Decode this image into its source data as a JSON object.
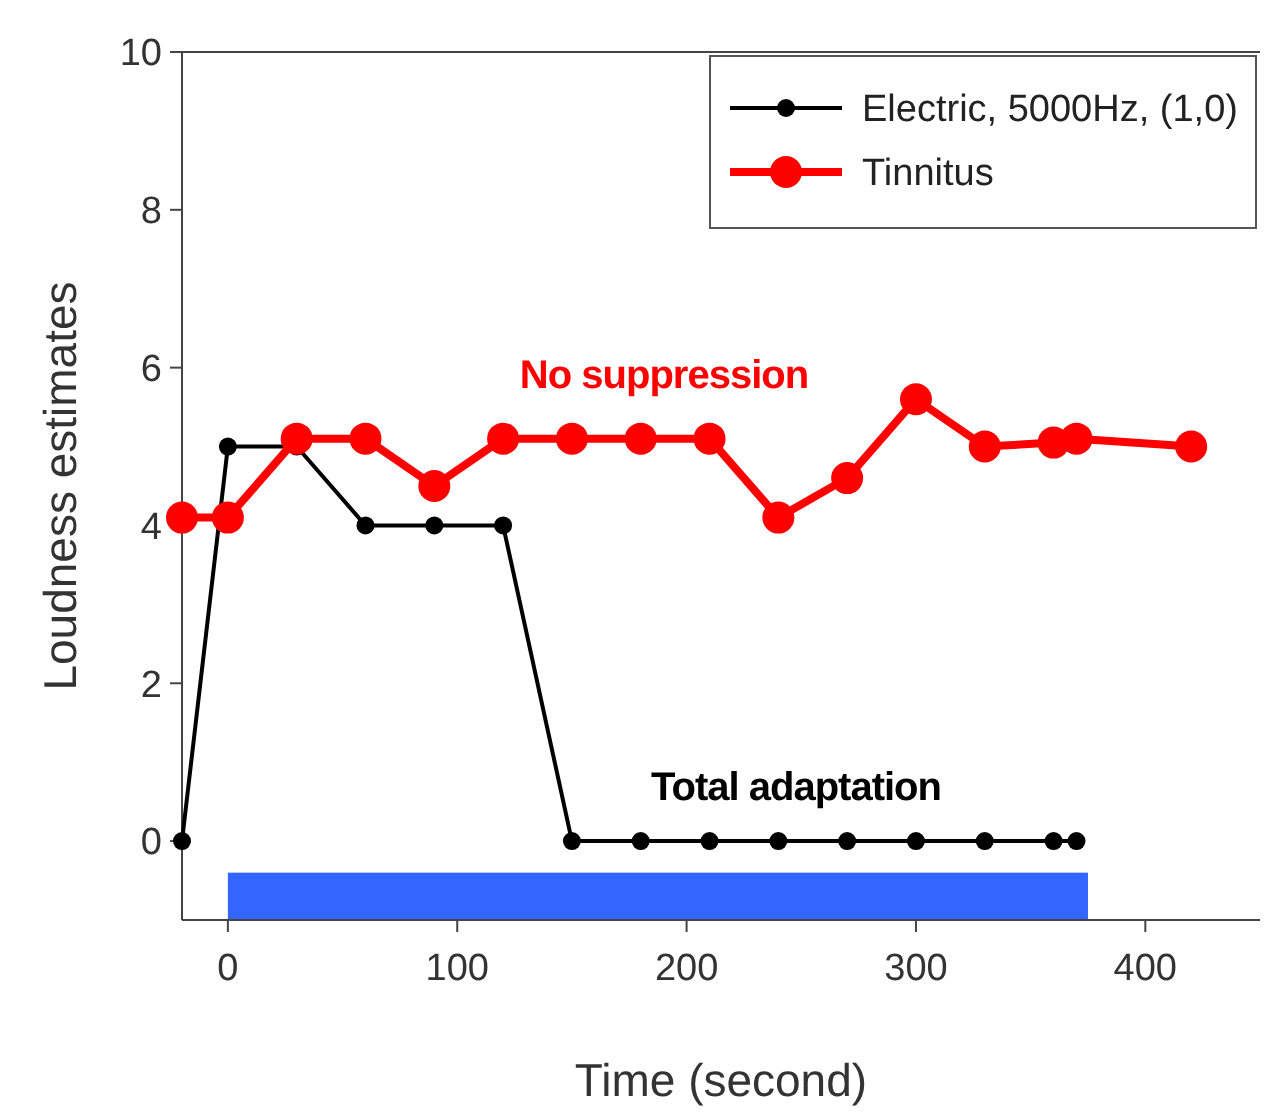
{
  "chart_data": {
    "type": "line",
    "xlabel": "Time (second)",
    "ylabel": "Loudness estimates",
    "xlim": [
      -20,
      450
    ],
    "xticks": [
      0,
      100,
      200,
      300,
      400
    ],
    "ylim": [
      -1,
      10
    ],
    "yticks": [
      0,
      2,
      4,
      6,
      8,
      10
    ],
    "series": [
      {
        "name": "Electric, 5000Hz, (1,0)",
        "color": "#000000",
        "x": [
          -20,
          0,
          30,
          60,
          90,
          120,
          150,
          180,
          210,
          240,
          270,
          300,
          330,
          360,
          370
        ],
        "values": [
          0,
          5,
          5,
          4,
          4,
          4,
          0,
          0,
          0,
          0,
          0,
          0,
          0,
          0,
          0
        ]
      },
      {
        "name": "Tinnitus",
        "color": "#ff0000",
        "x": [
          -20,
          0,
          30,
          60,
          90,
          120,
          150,
          180,
          210,
          240,
          270,
          300,
          330,
          360,
          370,
          420
        ],
        "values": [
          4.1,
          4.1,
          5.1,
          5.1,
          4.5,
          5.1,
          5.1,
          5.1,
          5.1,
          4.1,
          4.6,
          5.6,
          5,
          5.05,
          5.1,
          5
        ]
      }
    ],
    "annotations": [
      "Total adaptation",
      "No suppression"
    ],
    "bands": [
      {
        "axis": "x",
        "from": 0,
        "to": 375,
        "color": "#3366ff"
      }
    ],
    "marker": "circle",
    "legend": "top right",
    "grid": false
  }
}
